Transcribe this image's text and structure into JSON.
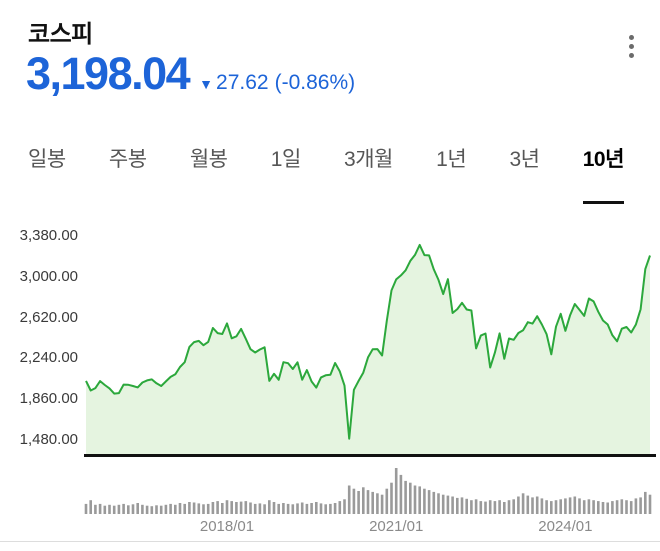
{
  "header": {
    "title": "코스피"
  },
  "quote": {
    "price": "3,198.04",
    "arrow": "▼",
    "change": "27.62",
    "change_percent": "(-0.86%)",
    "down_color": "#1d64d8"
  },
  "tabs": {
    "items": [
      {
        "label": "일봉",
        "selected": false
      },
      {
        "label": "주봉",
        "selected": false
      },
      {
        "label": "월봉",
        "selected": false
      },
      {
        "label": "1일",
        "selected": false
      },
      {
        "label": "3개월",
        "selected": false
      },
      {
        "label": "1년",
        "selected": false
      },
      {
        "label": "3년",
        "selected": false
      },
      {
        "label": "10년",
        "selected": true
      }
    ]
  },
  "chart_data": {
    "type": "area",
    "series_name": "코스피",
    "ylim": [
      1480,
      3380
    ],
    "yticks": [
      "3,380.00",
      "3,000.00",
      "2,620.00",
      "2,240.00",
      "1,860.00",
      "1,480.00"
    ],
    "ytick_values": [
      3380,
      3000,
      2620,
      2240,
      1860,
      1480
    ],
    "xticks": [
      {
        "label": "2018/01",
        "index": 30
      },
      {
        "label": "2021/01",
        "index": 66
      },
      {
        "label": "2024/01",
        "index": 102
      }
    ],
    "line_color": "#2ca83c",
    "fill_color": "#e5f4e0",
    "volume_color": "#9a9a9a",
    "axis_color": "#111111",
    "x": [
      "2015/07",
      "2015/08",
      "2015/09",
      "2015/10",
      "2015/11",
      "2015/12",
      "2016/01",
      "2016/02",
      "2016/03",
      "2016/04",
      "2016/05",
      "2016/06",
      "2016/07",
      "2016/08",
      "2016/09",
      "2016/10",
      "2016/11",
      "2016/12",
      "2017/01",
      "2017/02",
      "2017/03",
      "2017/04",
      "2017/05",
      "2017/06",
      "2017/07",
      "2017/08",
      "2017/09",
      "2017/10",
      "2017/11",
      "2017/12",
      "2018/01",
      "2018/02",
      "2018/03",
      "2018/04",
      "2018/05",
      "2018/06",
      "2018/07",
      "2018/08",
      "2018/09",
      "2018/10",
      "2018/11",
      "2018/12",
      "2019/01",
      "2019/02",
      "2019/03",
      "2019/04",
      "2019/05",
      "2019/06",
      "2019/07",
      "2019/08",
      "2019/09",
      "2019/10",
      "2019/11",
      "2019/12",
      "2020/01",
      "2020/02",
      "2020/03",
      "2020/04",
      "2020/05",
      "2020/06",
      "2020/07",
      "2020/08",
      "2020/09",
      "2020/10",
      "2020/11",
      "2020/12",
      "2021/01",
      "2021/02",
      "2021/03",
      "2021/04",
      "2021/05",
      "2021/06",
      "2021/07",
      "2021/08",
      "2021/09",
      "2021/10",
      "2021/11",
      "2021/12",
      "2022/01",
      "2022/02",
      "2022/03",
      "2022/04",
      "2022/05",
      "2022/06",
      "2022/07",
      "2022/08",
      "2022/09",
      "2022/10",
      "2022/11",
      "2022/12",
      "2023/01",
      "2023/02",
      "2023/03",
      "2023/04",
      "2023/05",
      "2023/06",
      "2023/07",
      "2023/08",
      "2023/09",
      "2023/10",
      "2023/11",
      "2023/12",
      "2024/01",
      "2024/02",
      "2024/03",
      "2024/04",
      "2024/05",
      "2024/06",
      "2024/07",
      "2024/08",
      "2024/09",
      "2024/10",
      "2024/11",
      "2024/12",
      "2025/01",
      "2025/02",
      "2025/03",
      "2025/04",
      "2025/05",
      "2025/06",
      "2025/07"
    ],
    "series": [
      {
        "name": "코스피",
        "values": [
          2030,
          1941,
          1963,
          2029,
          1992,
          1961,
          1912,
          1917,
          1996,
          1994,
          1983,
          1970,
          2016,
          2035,
          2044,
          2008,
          1983,
          2026,
          2068,
          2092,
          2160,
          2205,
          2347,
          2392,
          2403,
          2363,
          2394,
          2523,
          2476,
          2467,
          2566,
          2427,
          2446,
          2515,
          2423,
          2326,
          2295,
          2323,
          2343,
          2030,
          2097,
          2041,
          2205,
          2195,
          2141,
          2204,
          2042,
          2131,
          2025,
          1968,
          2063,
          2083,
          2088,
          2197,
          2119,
          1987,
          1492,
          1948,
          2030,
          2108,
          2249,
          2326,
          2327,
          2267,
          2591,
          2873,
          2976,
          3013,
          3061,
          3148,
          3204,
          3297,
          3202,
          3199,
          3069,
          2971,
          2839,
          2978,
          2663,
          2699,
          2758,
          2695,
          2686,
          2333,
          2452,
          2472,
          2155,
          2294,
          2473,
          2236,
          2425,
          2413,
          2477,
          2502,
          2577,
          2564,
          2633,
          2556,
          2465,
          2278,
          2535,
          2655,
          2497,
          2642,
          2747,
          2692,
          2636,
          2798,
          2771,
          2674,
          2593,
          2556,
          2455,
          2399,
          2517,
          2532,
          2481,
          2556,
          2697,
          3072,
          3198
        ]
      }
    ],
    "volume": [
      0.22,
      0.3,
      0.2,
      0.22,
      0.18,
      0.2,
      0.18,
      0.2,
      0.22,
      0.19,
      0.21,
      0.24,
      0.2,
      0.18,
      0.17,
      0.19,
      0.18,
      0.2,
      0.22,
      0.2,
      0.24,
      0.22,
      0.26,
      0.25,
      0.23,
      0.21,
      0.22,
      0.26,
      0.28,
      0.24,
      0.3,
      0.28,
      0.26,
      0.27,
      0.28,
      0.25,
      0.22,
      0.23,
      0.21,
      0.3,
      0.26,
      0.22,
      0.24,
      0.22,
      0.21,
      0.23,
      0.25,
      0.22,
      0.24,
      0.26,
      0.23,
      0.21,
      0.22,
      0.24,
      0.28,
      0.32,
      0.62,
      0.55,
      0.5,
      0.58,
      0.52,
      0.48,
      0.45,
      0.42,
      0.55,
      0.68,
      1.0,
      0.85,
      0.72,
      0.68,
      0.62,
      0.6,
      0.55,
      0.52,
      0.48,
      0.45,
      0.42,
      0.4,
      0.38,
      0.35,
      0.36,
      0.33,
      0.3,
      0.32,
      0.28,
      0.27,
      0.3,
      0.28,
      0.3,
      0.26,
      0.3,
      0.32,
      0.38,
      0.45,
      0.4,
      0.36,
      0.38,
      0.34,
      0.3,
      0.28,
      0.3,
      0.32,
      0.34,
      0.36,
      0.38,
      0.34,
      0.3,
      0.32,
      0.3,
      0.28,
      0.26,
      0.25,
      0.28,
      0.3,
      0.32,
      0.3,
      0.28,
      0.34,
      0.36,
      0.48,
      0.42
    ]
  }
}
